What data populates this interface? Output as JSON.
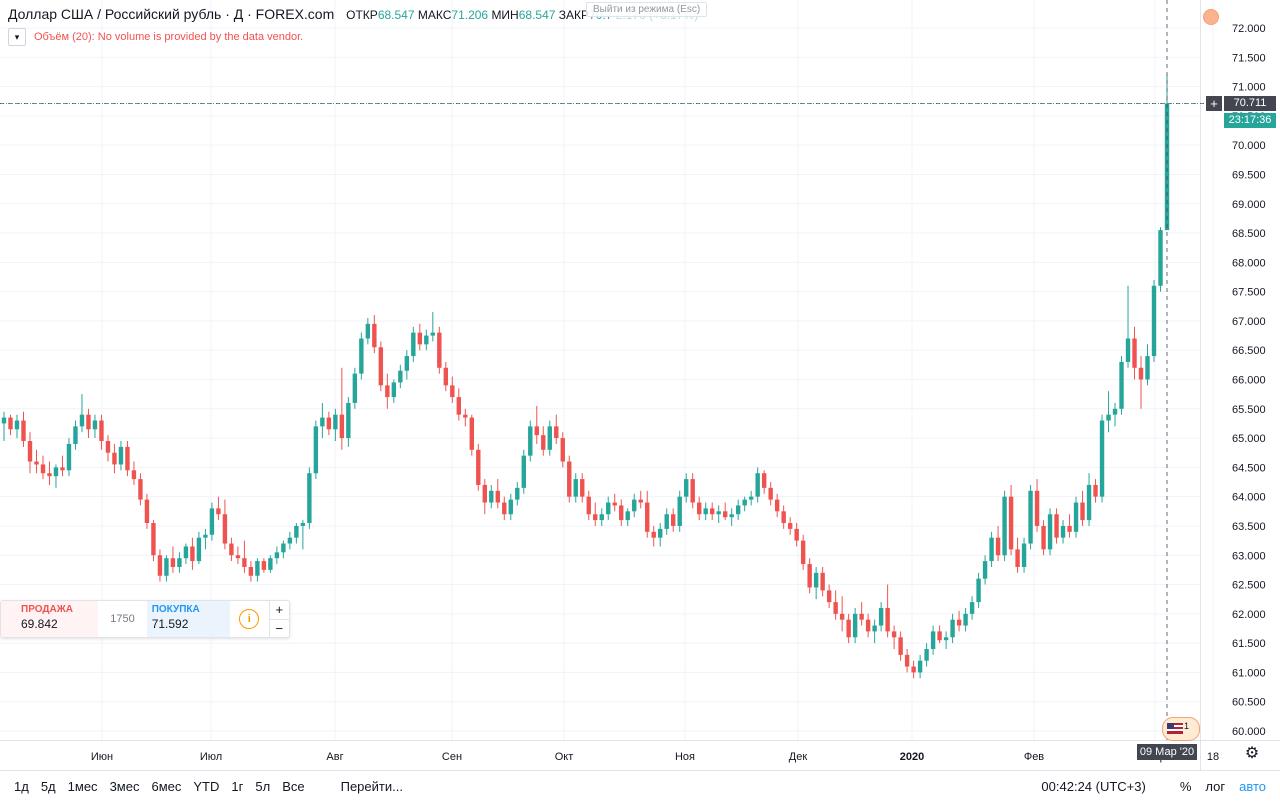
{
  "legend": {
    "title": "Доллар США / Российский рубль · Д · FOREX.com",
    "open_label": "ОТКР",
    "open": "68.547",
    "high_label": "МАКС",
    "high": "71.206",
    "low_label": "МИН",
    "low": "68.547",
    "close_label": "ЗАКР",
    "close": "70.7",
    "change": "2.170 (+3.17%)"
  },
  "exit_tooltip": "Выйти из режима",
  "exit_key": "(Esc)",
  "volume_notice": "Объём (20): No volume is provided by the data vendor.",
  "price_axis": {
    "current_price": "70.711",
    "countdown": "23:17:36",
    "ticks": [
      "72.000",
      "71.500",
      "71.000",
      "70.500",
      "70.000",
      "69.500",
      "69.000",
      "68.500",
      "68.000",
      "67.500",
      "67.000",
      "66.500",
      "66.000",
      "65.500",
      "65.000",
      "64.500",
      "64.000",
      "63.500",
      "63.000",
      "62.500",
      "62.000",
      "61.500",
      "61.000",
      "60.500",
      "60.000"
    ]
  },
  "time_axis": {
    "labels": [
      "Июн",
      "Июл",
      "Авг",
      "Сен",
      "Окт",
      "Ноя",
      "Дек",
      "2020",
      "Фев",
      "Мар",
      "18"
    ],
    "crosshair_date": "09 Мар '20"
  },
  "trade_panel": {
    "sell_label": "ПРОДАЖА",
    "sell_price": "69.842",
    "spread": "1750",
    "buy_label": "ПОКУПКА",
    "buy_price": "71.592",
    "info_icon": "i",
    "plus": "+",
    "minus": "−"
  },
  "event_badge": {
    "count": "1"
  },
  "range_buttons": [
    "1д",
    "5д",
    "1мес",
    "3мес",
    "6мес",
    "YTD",
    "1г",
    "5л",
    "Все"
  ],
  "goto_label": "Перейти...",
  "clock": "00:42:24 (UTC+3)",
  "toggle_percent": "%",
  "toggle_log": "лог",
  "toggle_auto": "авто",
  "icons": {
    "settings": "gear-icon",
    "crosshair": "plus-icon",
    "flag": "us-flag-icon",
    "alert": "alert-icon"
  },
  "colors": {
    "up": "#26a69a",
    "down": "#ef5350",
    "grid": "#f0f3fa",
    "axis_text": "#131722"
  },
  "chart_data": {
    "type": "candlestick",
    "symbol": "USDRUB",
    "interval": "1D",
    "ylim": [
      60.0,
      72.0
    ],
    "series": [
      {
        "o": 65.25,
        "h": 65.45,
        "l": 64.95,
        "c": 65.35
      },
      {
        "o": 65.35,
        "h": 65.4,
        "l": 65.05,
        "c": 65.15
      },
      {
        "o": 65.15,
        "h": 65.4,
        "l": 65.0,
        "c": 65.3
      },
      {
        "o": 65.3,
        "h": 65.45,
        "l": 64.85,
        "c": 64.95
      },
      {
        "o": 64.95,
        "h": 65.1,
        "l": 64.4,
        "c": 64.6
      },
      {
        "o": 64.6,
        "h": 64.8,
        "l": 64.4,
        "c": 64.55
      },
      {
        "o": 64.55,
        "h": 64.7,
        "l": 64.3,
        "c": 64.4
      },
      {
        "o": 64.4,
        "h": 64.6,
        "l": 64.2,
        "c": 64.35
      },
      {
        "o": 64.35,
        "h": 64.55,
        "l": 64.15,
        "c": 64.5
      },
      {
        "o": 64.5,
        "h": 64.7,
        "l": 64.35,
        "c": 64.45
      },
      {
        "o": 64.45,
        "h": 65.0,
        "l": 64.35,
        "c": 64.9
      },
      {
        "o": 64.9,
        "h": 65.3,
        "l": 64.8,
        "c": 65.2
      },
      {
        "o": 65.2,
        "h": 65.75,
        "l": 65.1,
        "c": 65.4
      },
      {
        "o": 65.4,
        "h": 65.5,
        "l": 65.0,
        "c": 65.15
      },
      {
        "o": 65.15,
        "h": 65.4,
        "l": 65.0,
        "c": 65.3
      },
      {
        "o": 65.3,
        "h": 65.4,
        "l": 64.8,
        "c": 64.95
      },
      {
        "o": 64.95,
        "h": 65.05,
        "l": 64.6,
        "c": 64.75
      },
      {
        "o": 64.75,
        "h": 64.9,
        "l": 64.4,
        "c": 64.55
      },
      {
        "o": 64.55,
        "h": 64.95,
        "l": 64.45,
        "c": 64.85
      },
      {
        "o": 64.85,
        "h": 64.95,
        "l": 64.35,
        "c": 64.45
      },
      {
        "o": 64.45,
        "h": 64.6,
        "l": 64.2,
        "c": 64.3
      },
      {
        "o": 64.3,
        "h": 64.4,
        "l": 63.85,
        "c": 63.95
      },
      {
        "o": 63.95,
        "h": 64.05,
        "l": 63.45,
        "c": 63.55
      },
      {
        "o": 63.55,
        "h": 63.6,
        "l": 62.9,
        "c": 63.0
      },
      {
        "o": 63.0,
        "h": 63.1,
        "l": 62.55,
        "c": 62.65
      },
      {
        "o": 62.65,
        "h": 63.0,
        "l": 62.55,
        "c": 62.95
      },
      {
        "o": 62.95,
        "h": 63.15,
        "l": 62.7,
        "c": 62.8
      },
      {
        "o": 62.8,
        "h": 63.05,
        "l": 62.7,
        "c": 62.95
      },
      {
        "o": 62.95,
        "h": 63.2,
        "l": 62.85,
        "c": 63.15
      },
      {
        "o": 63.15,
        "h": 63.3,
        "l": 62.75,
        "c": 62.9
      },
      {
        "o": 62.9,
        "h": 63.4,
        "l": 62.85,
        "c": 63.3
      },
      {
        "o": 63.3,
        "h": 63.45,
        "l": 63.1,
        "c": 63.35
      },
      {
        "o": 63.35,
        "h": 63.9,
        "l": 63.25,
        "c": 63.8
      },
      {
        "o": 63.8,
        "h": 64.0,
        "l": 63.6,
        "c": 63.7
      },
      {
        "o": 63.7,
        "h": 63.95,
        "l": 63.1,
        "c": 63.2
      },
      {
        "o": 63.2,
        "h": 63.3,
        "l": 62.9,
        "c": 63.0
      },
      {
        "o": 63.0,
        "h": 63.15,
        "l": 62.85,
        "c": 62.95
      },
      {
        "o": 62.95,
        "h": 63.25,
        "l": 62.7,
        "c": 62.8
      },
      {
        "o": 62.8,
        "h": 62.9,
        "l": 62.55,
        "c": 62.65
      },
      {
        "o": 62.65,
        "h": 62.95,
        "l": 62.55,
        "c": 62.9
      },
      {
        "o": 62.9,
        "h": 62.95,
        "l": 62.7,
        "c": 62.75
      },
      {
        "o": 62.75,
        "h": 63.0,
        "l": 62.7,
        "c": 62.95
      },
      {
        "o": 62.95,
        "h": 63.15,
        "l": 62.85,
        "c": 63.05
      },
      {
        "o": 63.05,
        "h": 63.25,
        "l": 62.95,
        "c": 63.2
      },
      {
        "o": 63.2,
        "h": 63.4,
        "l": 63.1,
        "c": 63.3
      },
      {
        "o": 63.3,
        "h": 63.55,
        "l": 63.2,
        "c": 63.5
      },
      {
        "o": 63.5,
        "h": 63.6,
        "l": 63.1,
        "c": 63.55
      },
      {
        "o": 63.55,
        "h": 64.5,
        "l": 63.45,
        "c": 64.4
      },
      {
        "o": 64.4,
        "h": 65.3,
        "l": 64.3,
        "c": 65.2
      },
      {
        "o": 65.2,
        "h": 65.6,
        "l": 65.0,
        "c": 65.35
      },
      {
        "o": 65.35,
        "h": 65.45,
        "l": 65.05,
        "c": 65.15
      },
      {
        "o": 65.15,
        "h": 65.5,
        "l": 64.95,
        "c": 65.4
      },
      {
        "o": 65.4,
        "h": 66.2,
        "l": 64.8,
        "c": 65.0
      },
      {
        "o": 65.0,
        "h": 65.7,
        "l": 64.85,
        "c": 65.6
      },
      {
        "o": 65.6,
        "h": 66.2,
        "l": 65.5,
        "c": 66.1
      },
      {
        "o": 66.1,
        "h": 66.8,
        "l": 66.0,
        "c": 66.7
      },
      {
        "o": 66.7,
        "h": 67.05,
        "l": 66.6,
        "c": 66.95
      },
      {
        "o": 66.95,
        "h": 67.1,
        "l": 66.45,
        "c": 66.55
      },
      {
        "o": 66.55,
        "h": 66.65,
        "l": 65.8,
        "c": 65.9
      },
      {
        "o": 65.9,
        "h": 66.1,
        "l": 65.5,
        "c": 65.7
      },
      {
        "o": 65.7,
        "h": 66.0,
        "l": 65.6,
        "c": 65.95
      },
      {
        "o": 65.95,
        "h": 66.25,
        "l": 65.85,
        "c": 66.15
      },
      {
        "o": 66.15,
        "h": 66.5,
        "l": 66.0,
        "c": 66.4
      },
      {
        "o": 66.4,
        "h": 66.9,
        "l": 66.3,
        "c": 66.8
      },
      {
        "o": 66.8,
        "h": 66.95,
        "l": 66.5,
        "c": 66.6
      },
      {
        "o": 66.6,
        "h": 66.85,
        "l": 66.5,
        "c": 66.75
      },
      {
        "o": 66.75,
        "h": 67.15,
        "l": 66.65,
        "c": 66.8
      },
      {
        "o": 66.8,
        "h": 66.9,
        "l": 66.1,
        "c": 66.2
      },
      {
        "o": 66.2,
        "h": 66.3,
        "l": 65.8,
        "c": 65.9
      },
      {
        "o": 65.9,
        "h": 66.05,
        "l": 65.6,
        "c": 65.7
      },
      {
        "o": 65.7,
        "h": 65.85,
        "l": 65.3,
        "c": 65.4
      },
      {
        "o": 65.4,
        "h": 65.5,
        "l": 65.2,
        "c": 65.35
      },
      {
        "o": 65.35,
        "h": 65.4,
        "l": 64.7,
        "c": 64.8
      },
      {
        "o": 64.8,
        "h": 64.9,
        "l": 64.1,
        "c": 64.2
      },
      {
        "o": 64.2,
        "h": 64.3,
        "l": 63.7,
        "c": 63.9
      },
      {
        "o": 63.9,
        "h": 64.2,
        "l": 63.8,
        "c": 64.1
      },
      {
        "o": 64.1,
        "h": 64.3,
        "l": 63.8,
        "c": 63.9
      },
      {
        "o": 63.9,
        "h": 64.0,
        "l": 63.6,
        "c": 63.7
      },
      {
        "o": 63.7,
        "h": 64.05,
        "l": 63.6,
        "c": 63.95
      },
      {
        "o": 63.95,
        "h": 64.25,
        "l": 63.85,
        "c": 64.15
      },
      {
        "o": 64.15,
        "h": 64.8,
        "l": 64.05,
        "c": 64.7
      },
      {
        "o": 64.7,
        "h": 65.3,
        "l": 64.6,
        "c": 65.2
      },
      {
        "o": 65.2,
        "h": 65.55,
        "l": 64.9,
        "c": 65.05
      },
      {
        "o": 65.05,
        "h": 65.2,
        "l": 64.7,
        "c": 64.8
      },
      {
        "o": 64.8,
        "h": 65.3,
        "l": 64.7,
        "c": 65.2
      },
      {
        "o": 65.2,
        "h": 65.4,
        "l": 64.9,
        "c": 65.0
      },
      {
        "o": 65.0,
        "h": 65.1,
        "l": 64.5,
        "c": 64.6
      },
      {
        "o": 64.6,
        "h": 64.7,
        "l": 63.9,
        "c": 64.0
      },
      {
        "o": 64.0,
        "h": 64.4,
        "l": 63.9,
        "c": 64.3
      },
      {
        "o": 64.3,
        "h": 64.4,
        "l": 63.9,
        "c": 64.0
      },
      {
        "o": 64.0,
        "h": 64.1,
        "l": 63.6,
        "c": 63.7
      },
      {
        "o": 63.7,
        "h": 63.9,
        "l": 63.5,
        "c": 63.6
      },
      {
        "o": 63.6,
        "h": 63.8,
        "l": 63.5,
        "c": 63.7
      },
      {
        "o": 63.7,
        "h": 64.0,
        "l": 63.6,
        "c": 63.9
      },
      {
        "o": 63.9,
        "h": 64.05,
        "l": 63.75,
        "c": 63.85
      },
      {
        "o": 63.85,
        "h": 63.95,
        "l": 63.5,
        "c": 63.6
      },
      {
        "o": 63.6,
        "h": 63.8,
        "l": 63.5,
        "c": 63.75
      },
      {
        "o": 63.75,
        "h": 64.05,
        "l": 63.65,
        "c": 63.95
      },
      {
        "o": 63.95,
        "h": 64.1,
        "l": 63.8,
        "c": 63.9
      },
      {
        "o": 63.9,
        "h": 64.1,
        "l": 63.3,
        "c": 63.4
      },
      {
        "o": 63.4,
        "h": 63.5,
        "l": 63.15,
        "c": 63.3
      },
      {
        "o": 63.3,
        "h": 63.55,
        "l": 63.15,
        "c": 63.45
      },
      {
        "o": 63.45,
        "h": 63.8,
        "l": 63.35,
        "c": 63.7
      },
      {
        "o": 63.7,
        "h": 63.8,
        "l": 63.4,
        "c": 63.5
      },
      {
        "o": 63.5,
        "h": 64.1,
        "l": 63.4,
        "c": 64.0
      },
      {
        "o": 64.0,
        "h": 64.4,
        "l": 63.9,
        "c": 64.3
      },
      {
        "o": 64.3,
        "h": 64.4,
        "l": 63.8,
        "c": 63.9
      },
      {
        "o": 63.9,
        "h": 64.0,
        "l": 63.6,
        "c": 63.7
      },
      {
        "o": 63.7,
        "h": 63.9,
        "l": 63.6,
        "c": 63.8
      },
      {
        "o": 63.8,
        "h": 63.9,
        "l": 63.6,
        "c": 63.7
      },
      {
        "o": 63.7,
        "h": 63.85,
        "l": 63.55,
        "c": 63.75
      },
      {
        "o": 63.75,
        "h": 63.9,
        "l": 63.6,
        "c": 63.65
      },
      {
        "o": 63.65,
        "h": 63.8,
        "l": 63.5,
        "c": 63.7
      },
      {
        "o": 63.7,
        "h": 63.95,
        "l": 63.6,
        "c": 63.85
      },
      {
        "o": 63.85,
        "h": 64.0,
        "l": 63.75,
        "c": 63.95
      },
      {
        "o": 63.95,
        "h": 64.1,
        "l": 63.85,
        "c": 64.0
      },
      {
        "o": 64.0,
        "h": 64.5,
        "l": 63.9,
        "c": 64.4
      },
      {
        "o": 64.4,
        "h": 64.45,
        "l": 64.05,
        "c": 64.15
      },
      {
        "o": 64.15,
        "h": 64.25,
        "l": 63.85,
        "c": 63.95
      },
      {
        "o": 63.95,
        "h": 64.05,
        "l": 63.65,
        "c": 63.75
      },
      {
        "o": 63.75,
        "h": 63.85,
        "l": 63.45,
        "c": 63.55
      },
      {
        "o": 63.55,
        "h": 63.65,
        "l": 63.35,
        "c": 63.45
      },
      {
        "o": 63.45,
        "h": 63.55,
        "l": 63.15,
        "c": 63.25
      },
      {
        "o": 63.25,
        "h": 63.35,
        "l": 62.75,
        "c": 62.85
      },
      {
        "o": 62.85,
        "h": 62.95,
        "l": 62.35,
        "c": 62.45
      },
      {
        "o": 62.45,
        "h": 62.8,
        "l": 62.25,
        "c": 62.7
      },
      {
        "o": 62.7,
        "h": 62.8,
        "l": 62.3,
        "c": 62.4
      },
      {
        "o": 62.4,
        "h": 62.5,
        "l": 62.1,
        "c": 62.2
      },
      {
        "o": 62.2,
        "h": 62.4,
        "l": 61.9,
        "c": 62.0
      },
      {
        "o": 62.0,
        "h": 62.3,
        "l": 61.7,
        "c": 61.9
      },
      {
        "o": 61.9,
        "h": 62.0,
        "l": 61.5,
        "c": 61.6
      },
      {
        "o": 61.6,
        "h": 62.1,
        "l": 61.5,
        "c": 62.0
      },
      {
        "o": 62.0,
        "h": 62.2,
        "l": 61.8,
        "c": 61.9
      },
      {
        "o": 61.9,
        "h": 62.0,
        "l": 61.6,
        "c": 61.7
      },
      {
        "o": 61.7,
        "h": 61.9,
        "l": 61.5,
        "c": 61.8
      },
      {
        "o": 61.8,
        "h": 62.2,
        "l": 61.7,
        "c": 62.1
      },
      {
        "o": 62.1,
        "h": 62.5,
        "l": 61.6,
        "c": 61.7
      },
      {
        "o": 61.7,
        "h": 61.8,
        "l": 61.4,
        "c": 61.6
      },
      {
        "o": 61.6,
        "h": 61.7,
        "l": 61.2,
        "c": 61.3
      },
      {
        "o": 61.3,
        "h": 61.4,
        "l": 61.0,
        "c": 61.1
      },
      {
        "o": 61.1,
        "h": 61.2,
        "l": 60.9,
        "c": 61.0
      },
      {
        "o": 61.0,
        "h": 61.3,
        "l": 60.9,
        "c": 61.2
      },
      {
        "o": 61.2,
        "h": 61.5,
        "l": 61.1,
        "c": 61.4
      },
      {
        "o": 61.4,
        "h": 61.8,
        "l": 61.3,
        "c": 61.7
      },
      {
        "o": 61.7,
        "h": 61.8,
        "l": 61.5,
        "c": 61.55
      },
      {
        "o": 61.55,
        "h": 61.7,
        "l": 61.4,
        "c": 61.6
      },
      {
        "o": 61.6,
        "h": 62.0,
        "l": 61.5,
        "c": 61.9
      },
      {
        "o": 61.9,
        "h": 62.05,
        "l": 61.7,
        "c": 61.8
      },
      {
        "o": 61.8,
        "h": 62.1,
        "l": 61.7,
        "c": 62.0
      },
      {
        "o": 62.0,
        "h": 62.3,
        "l": 61.9,
        "c": 62.2
      },
      {
        "o": 62.2,
        "h": 62.7,
        "l": 62.1,
        "c": 62.6
      },
      {
        "o": 62.6,
        "h": 63.0,
        "l": 62.5,
        "c": 62.9
      },
      {
        "o": 62.9,
        "h": 63.4,
        "l": 62.8,
        "c": 63.3
      },
      {
        "o": 63.3,
        "h": 63.5,
        "l": 62.9,
        "c": 63.0
      },
      {
        "o": 63.0,
        "h": 64.1,
        "l": 62.9,
        "c": 64.0
      },
      {
        "o": 64.0,
        "h": 64.2,
        "l": 63.0,
        "c": 63.1
      },
      {
        "o": 63.1,
        "h": 63.3,
        "l": 62.7,
        "c": 62.8
      },
      {
        "o": 62.8,
        "h": 63.3,
        "l": 62.7,
        "c": 63.2
      },
      {
        "o": 63.2,
        "h": 64.2,
        "l": 63.1,
        "c": 64.1
      },
      {
        "o": 64.1,
        "h": 64.3,
        "l": 63.4,
        "c": 63.5
      },
      {
        "o": 63.5,
        "h": 63.6,
        "l": 63.0,
        "c": 63.1
      },
      {
        "o": 63.1,
        "h": 63.8,
        "l": 63.0,
        "c": 63.7
      },
      {
        "o": 63.7,
        "h": 63.8,
        "l": 63.2,
        "c": 63.3
      },
      {
        "o": 63.3,
        "h": 63.6,
        "l": 63.2,
        "c": 63.5
      },
      {
        "o": 63.5,
        "h": 63.7,
        "l": 63.3,
        "c": 63.4
      },
      {
        "o": 63.4,
        "h": 64.0,
        "l": 63.3,
        "c": 63.9
      },
      {
        "o": 63.9,
        "h": 64.1,
        "l": 63.5,
        "c": 63.6
      },
      {
        "o": 63.6,
        "h": 64.4,
        "l": 63.5,
        "c": 64.2
      },
      {
        "o": 64.2,
        "h": 64.3,
        "l": 63.9,
        "c": 64.0
      },
      {
        "o": 64.0,
        "h": 65.4,
        "l": 63.9,
        "c": 65.3
      },
      {
        "o": 65.3,
        "h": 65.8,
        "l": 65.1,
        "c": 65.4
      },
      {
        "o": 65.4,
        "h": 65.6,
        "l": 65.2,
        "c": 65.5
      },
      {
        "o": 65.5,
        "h": 66.4,
        "l": 65.4,
        "c": 66.3
      },
      {
        "o": 66.3,
        "h": 67.6,
        "l": 66.2,
        "c": 66.7
      },
      {
        "o": 66.7,
        "h": 66.9,
        "l": 66.0,
        "c": 66.2
      },
      {
        "o": 66.2,
        "h": 66.4,
        "l": 65.5,
        "c": 66.0
      },
      {
        "o": 66.0,
        "h": 66.6,
        "l": 65.9,
        "c": 66.4
      },
      {
        "o": 66.4,
        "h": 67.7,
        "l": 66.3,
        "c": 67.6
      },
      {
        "o": 67.6,
        "h": 68.6,
        "l": 67.5,
        "c": 68.55
      },
      {
        "o": 68.55,
        "h": 71.21,
        "l": 68.55,
        "c": 70.71
      }
    ]
  }
}
